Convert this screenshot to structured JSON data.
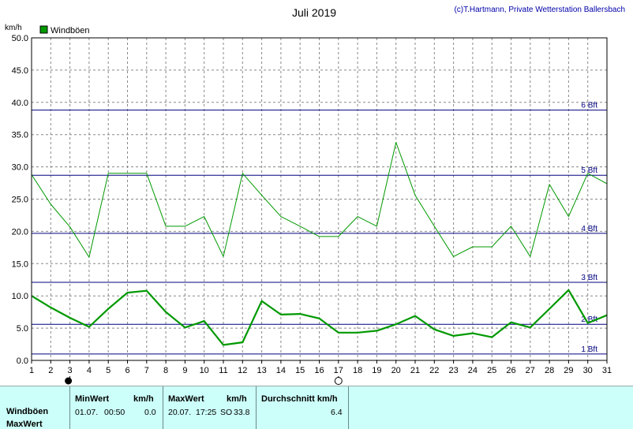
{
  "header": {
    "title": "Juli 2019",
    "credit": "(c)T.Hartmann, Private Wetterstation Ballersbach"
  },
  "chart_data": {
    "type": "line",
    "title": "Juli 2019",
    "ylabel": "km/h",
    "xlabel": "",
    "ylim": [
      0,
      50
    ],
    "xlim": [
      1,
      31
    ],
    "yticks": [
      "0.0",
      "5.0",
      "10.0",
      "15.0",
      "20.0",
      "25.0",
      "30.0",
      "35.0",
      "40.0",
      "45.0",
      "50.0"
    ],
    "ytick_values": [
      0,
      5,
      10,
      15,
      20,
      25,
      30,
      35,
      40,
      45,
      50
    ],
    "xticks": [
      "1",
      "2",
      "3",
      "4",
      "5",
      "6",
      "7",
      "8",
      "9",
      "10",
      "11",
      "12",
      "13",
      "14",
      "15",
      "16",
      "17",
      "18",
      "19",
      "20",
      "21",
      "22",
      "23",
      "24",
      "25",
      "26",
      "27",
      "28",
      "29",
      "30",
      "31"
    ],
    "grid": true,
    "legend": {
      "placement": "top-left",
      "entries": [
        "Windböen"
      ]
    },
    "color": "#009900",
    "beaufort_lines": [
      {
        "label": "1 Bft",
        "value": 1.0
      },
      {
        "label": "2 Bft",
        "value": 5.6
      },
      {
        "label": "3 Bft",
        "value": 12.1
      },
      {
        "label": "4 Bft",
        "value": 19.7
      },
      {
        "label": "5 Bft",
        "value": 28.7
      },
      {
        "label": "6 Bft",
        "value": 38.8
      }
    ],
    "beaufort_color": "#000080",
    "moon_markers": [
      {
        "day": 3,
        "phase": "new-moon"
      },
      {
        "day": 17,
        "phase": "full-moon"
      }
    ],
    "series": [
      {
        "name": "",
        "style": "thin",
        "x": [
          1,
          2,
          3,
          4,
          5,
          6,
          7,
          8,
          9,
          10,
          11,
          12,
          13,
          14,
          15,
          16,
          17,
          18,
          19,
          20,
          21,
          22,
          23,
          24,
          25,
          26,
          27,
          28,
          29,
          30,
          31
        ],
        "values": [
          28.8,
          24.2,
          20.7,
          16.0,
          29.0,
          29.0,
          29.0,
          20.8,
          20.8,
          22.3,
          16.1,
          29.0,
          25.6,
          22.3,
          20.8,
          19.2,
          19.2,
          22.3,
          20.8,
          33.8,
          25.6,
          20.8,
          16.1,
          17.6,
          17.6,
          20.8,
          16.1,
          27.3,
          22.3,
          29.0,
          27.4
        ]
      },
      {
        "name": "",
        "style": "thick",
        "x": [
          1,
          2,
          3,
          4,
          5,
          6,
          7,
          8,
          9,
          10,
          11,
          12,
          13,
          14,
          15,
          16,
          17,
          18,
          19,
          20,
          21,
          22,
          23,
          24,
          25,
          26,
          27,
          28,
          29,
          30,
          31
        ],
        "values": [
          10.0,
          8.2,
          6.6,
          5.2,
          8.0,
          10.5,
          10.8,
          7.5,
          5.1,
          6.1,
          2.4,
          2.8,
          9.2,
          7.1,
          7.2,
          6.5,
          4.3,
          4.3,
          4.6,
          5.6,
          6.9,
          4.8,
          3.8,
          4.2,
          3.6,
          5.9,
          5.1,
          8.0,
          10.9,
          5.8,
          7.0
        ]
      }
    ]
  },
  "stats": {
    "row_labels": [
      "Windböen",
      "MaxWert"
    ],
    "min": {
      "header": "MinWert",
      "unit": "km/h",
      "date": "01.07.",
      "time": "00:50",
      "value": "0.0"
    },
    "max": {
      "header": "MaxWert",
      "unit": "km/h",
      "date": "20.07.",
      "time": "17:25",
      "dir": "SO",
      "value": "33.8"
    },
    "avg": {
      "header": "Durchschnitt km/h",
      "value": "6.4"
    }
  }
}
